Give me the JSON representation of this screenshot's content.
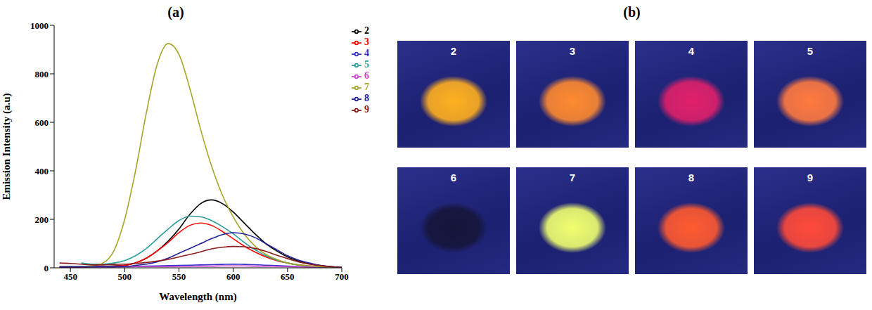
{
  "chart_data": {
    "type": "line",
    "title": "(a)",
    "x_label": "Wavelength (nm)",
    "y_label": "Emission Intensity (a.u)",
    "x": [
      440,
      450,
      460,
      470,
      480,
      490,
      500,
      510,
      520,
      530,
      540,
      550,
      560,
      570,
      580,
      590,
      600,
      610,
      620,
      630,
      640,
      650,
      660,
      670,
      680,
      690,
      700
    ],
    "xlim": [
      435,
      700
    ],
    "xticks": [
      450,
      500,
      550,
      600,
      650,
      700
    ],
    "ylim": [
      0,
      1000
    ],
    "yticks": [
      0,
      200,
      400,
      600,
      800,
      1000
    ],
    "grid": false,
    "legend": "right",
    "series": [
      {
        "name": "2",
        "color": "#000000",
        "values": [
          3,
          3,
          4,
          5,
          6,
          8,
          10,
          20,
          40,
          70,
          110,
          160,
          220,
          265,
          280,
          265,
          230,
          185,
          140,
          100,
          70,
          45,
          28,
          17,
          10,
          5,
          2
        ]
      },
      {
        "name": "3",
        "color": "#ff0000",
        "values": [
          3,
          3,
          4,
          5,
          6,
          7,
          10,
          20,
          40,
          70,
          105,
          145,
          175,
          185,
          175,
          150,
          120,
          90,
          65,
          45,
          30,
          20,
          12,
          8,
          5,
          3,
          2
        ]
      },
      {
        "name": "4",
        "color": "#3333cc",
        "values": [
          5,
          5,
          5,
          5,
          5,
          5,
          5,
          6,
          7,
          8,
          9,
          10,
          11,
          12,
          13,
          14,
          15,
          14,
          13,
          11,
          9,
          7,
          5,
          4,
          3,
          2,
          2
        ]
      },
      {
        "name": "5",
        "color": "#2a9d9d",
        "values": [
          null,
          null,
          20,
          15,
          15,
          20,
          30,
          50,
          80,
          120,
          160,
          195,
          213,
          210,
          195,
          170,
          140,
          105,
          75,
          50,
          32,
          20,
          12,
          7,
          4,
          2,
          1
        ]
      },
      {
        "name": "6",
        "color": "#cc44cc",
        "values": [
          4,
          4,
          4,
          4,
          4,
          4,
          4,
          5,
          5,
          5,
          5,
          6,
          6,
          7,
          7,
          8,
          8,
          8,
          7,
          7,
          6,
          5,
          4,
          3,
          3,
          2,
          2
        ]
      },
      {
        "name": "7",
        "color": "#a5a52a",
        "values": [
          5,
          5,
          5,
          8,
          20,
          70,
          200,
          400,
          640,
          840,
          925,
          880,
          740,
          570,
          420,
          300,
          210,
          140,
          90,
          55,
          35,
          20,
          12,
          8,
          5,
          3,
          2
        ]
      },
      {
        "name": "8",
        "color": "#22229a",
        "values": [
          4,
          4,
          4,
          4,
          4,
          4,
          5,
          10,
          15,
          25,
          40,
          60,
          80,
          100,
          120,
          137,
          145,
          140,
          125,
          100,
          75,
          50,
          32,
          20,
          10,
          5,
          2
        ]
      },
      {
        "name": "9",
        "color": "#8b1c1c",
        "values": [
          20,
          18,
          15,
          12,
          12,
          14,
          15,
          18,
          22,
          28,
          35,
          45,
          55,
          66,
          78,
          85,
          88,
          87,
          80,
          68,
          52,
          38,
          25,
          15,
          9,
          5,
          2
        ]
      }
    ]
  },
  "panel_b": {
    "title": "(b)",
    "samples": [
      {
        "label": "2",
        "color": "#ffb020"
      },
      {
        "label": "3",
        "color": "#ff8a30"
      },
      {
        "label": "4",
        "color": "#e0206a"
      },
      {
        "label": "5",
        "color": "#ff7a40"
      },
      {
        "label": "6",
        "color": "#15153a"
      },
      {
        "label": "7",
        "color": "#f0ff70"
      },
      {
        "label": "8",
        "color": "#ff5a30"
      },
      {
        "label": "9",
        "color": "#ff4a3a"
      }
    ]
  }
}
